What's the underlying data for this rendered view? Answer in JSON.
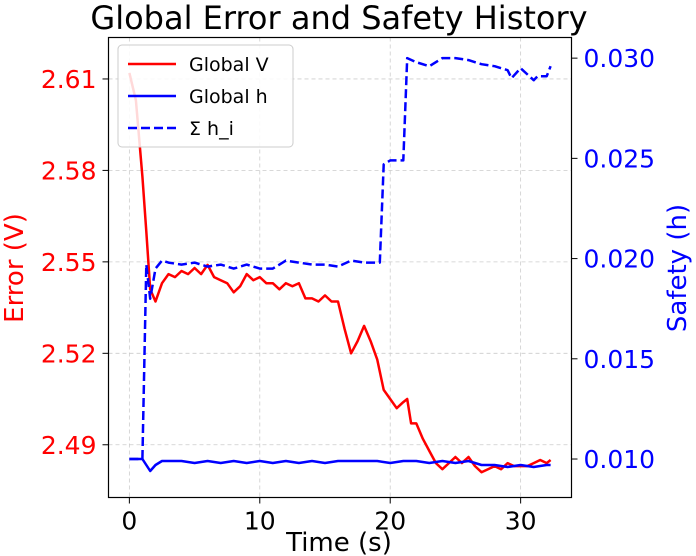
{
  "chart_data": {
    "type": "line",
    "title": "Global Error and Safety History",
    "xlabel": "Time (s)",
    "ylabel_left": "Error (V)",
    "ylabel_right": "Safety (h)",
    "xlim": [
      -1.6,
      33.9
    ],
    "ylim_left": [
      2.4727,
      2.6236
    ],
    "ylim_right": [
      0.00808,
      0.03103
    ],
    "x_ticks": [
      0,
      10,
      20,
      30
    ],
    "y_ticks_left": [
      2.49,
      2.52,
      2.55,
      2.58,
      2.61
    ],
    "y_ticks_right": [
      0.01,
      0.015,
      0.02,
      0.025,
      0.03
    ],
    "y_tick_labels_left": [
      "2.49",
      "2.52",
      "2.55",
      "2.58",
      "2.61"
    ],
    "y_tick_labels_right": [
      "0.010",
      "0.015",
      "0.020",
      "0.025",
      "0.030"
    ],
    "grid": true,
    "legend_position": "top-left",
    "colors": {
      "left_axis": "#ff0000",
      "right_axis": "#0000ff",
      "grid": "#cccccc"
    },
    "series": [
      {
        "name": "Global V",
        "axis": "left",
        "color": "#ff0000",
        "style": "solid",
        "x": [
          0,
          0.5,
          1.0,
          1.3,
          1.6,
          2.0,
          2.5,
          3.0,
          3.5,
          4.0,
          4.5,
          5.0,
          5.5,
          6.0,
          6.5,
          7.0,
          7.5,
          8.0,
          8.5,
          9.0,
          9.5,
          10.0,
          10.5,
          11.0,
          11.5,
          12.0,
          12.5,
          13.0,
          13.5,
          14.0,
          14.5,
          15.0,
          15.5,
          16.0,
          16.5,
          17.0,
          17.5,
          18.0,
          18.5,
          19.0,
          19.5,
          20.0,
          20.5,
          21.0,
          21.3,
          21.6,
          22.0,
          22.5,
          23.0,
          23.5,
          24.0,
          24.5,
          25.0,
          25.5,
          26.0,
          26.5,
          27.0,
          27.5,
          28.0,
          28.5,
          29.0,
          29.5,
          30.0,
          30.5,
          31.0,
          31.5,
          32.0,
          32.3
        ],
        "y": [
          2.612,
          2.603,
          2.578,
          2.56,
          2.541,
          2.537,
          2.543,
          2.546,
          2.545,
          2.547,
          2.546,
          2.548,
          2.546,
          2.549,
          2.545,
          2.544,
          2.543,
          2.54,
          2.542,
          2.546,
          2.544,
          2.545,
          2.543,
          2.543,
          2.541,
          2.543,
          2.542,
          2.543,
          2.538,
          2.538,
          2.537,
          2.539,
          2.537,
          2.537,
          2.528,
          2.52,
          2.524,
          2.529,
          2.524,
          2.518,
          2.508,
          2.505,
          2.502,
          2.504,
          2.505,
          2.497,
          2.497,
          2.492,
          2.488,
          2.484,
          2.482,
          2.484,
          2.486,
          2.484,
          2.486,
          2.483,
          2.481,
          2.482,
          2.483,
          2.482,
          2.484,
          2.483,
          2.483,
          2.483,
          2.484,
          2.485,
          2.484,
          2.485
        ]
      },
      {
        "name": "Global h",
        "axis": "right",
        "color": "#0000ff",
        "style": "solid",
        "x": [
          0,
          1.0,
          1.3,
          1.6,
          2.0,
          2.5,
          3.0,
          4.0,
          5.0,
          6.0,
          7.0,
          8.0,
          9.0,
          10.0,
          11.0,
          12.0,
          13.0,
          14.0,
          15.0,
          16.0,
          17.0,
          18.0,
          19.0,
          20.0,
          21.0,
          22.0,
          23.0,
          24.0,
          25.0,
          26.0,
          27.0,
          28.0,
          29.0,
          30.0,
          31.0,
          32.0,
          32.3
        ],
        "y": [
          0.01,
          0.01,
          0.0097,
          0.0094,
          0.0097,
          0.0099,
          0.0099,
          0.0099,
          0.0098,
          0.0099,
          0.0098,
          0.0099,
          0.0098,
          0.0099,
          0.0098,
          0.0099,
          0.0098,
          0.0099,
          0.0098,
          0.0099,
          0.0099,
          0.0099,
          0.0099,
          0.0098,
          0.0099,
          0.0099,
          0.0098,
          0.0099,
          0.0098,
          0.0099,
          0.0097,
          0.0097,
          0.0096,
          0.0097,
          0.0096,
          0.0097,
          0.0097
        ]
      },
      {
        "name": "Σ h_i",
        "axis": "right",
        "color": "#0000ff",
        "style": "dashed",
        "x": [
          0,
          1.0,
          1.3,
          1.6,
          2.0,
          2.5,
          3.0,
          4.0,
          5.0,
          6.0,
          7.0,
          8.0,
          9.0,
          10.0,
          11.0,
          12.0,
          13.0,
          14.0,
          15.0,
          16.0,
          17.0,
          18.0,
          19.0,
          19.2,
          19.5,
          20.0,
          20.3,
          21.0,
          21.3,
          22.0,
          23.0,
          24.0,
          25.0,
          26.0,
          27.0,
          28.0,
          29.0,
          29.3,
          30.0,
          31.0,
          31.3,
          32.0,
          32.3
        ],
        "y": [
          0.01,
          0.01,
          0.0197,
          0.018,
          0.0195,
          0.0199,
          0.0198,
          0.0197,
          0.0198,
          0.0196,
          0.0197,
          0.0195,
          0.0197,
          0.0195,
          0.0195,
          0.0199,
          0.0198,
          0.0197,
          0.0197,
          0.0196,
          0.0199,
          0.0198,
          0.0198,
          0.0198,
          0.0247,
          0.0249,
          0.0249,
          0.0249,
          0.03,
          0.0298,
          0.0296,
          0.03,
          0.03,
          0.0299,
          0.0297,
          0.0296,
          0.0294,
          0.029,
          0.0295,
          0.0289,
          0.0291,
          0.0291,
          0.0296
        ]
      }
    ]
  }
}
